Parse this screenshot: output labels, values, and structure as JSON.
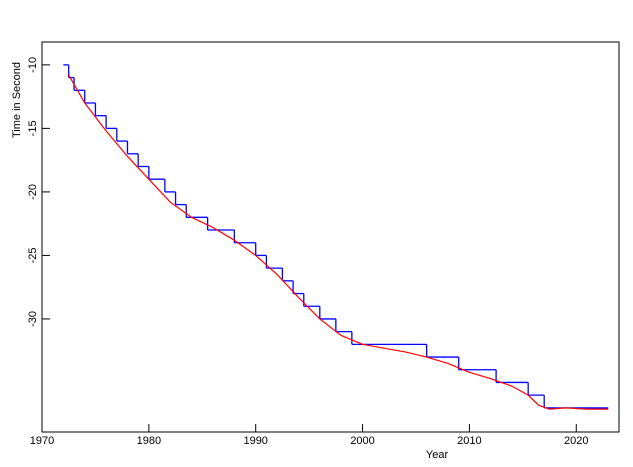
{
  "chart_data": {
    "type": "line",
    "xlabel": "Year",
    "ylabel": "Time in Second",
    "xlim": [
      1970,
      2024
    ],
    "ylim": [
      -38.9,
      -8.2
    ],
    "xticks": [
      1970,
      1980,
      1990,
      2000,
      2010,
      2020
    ],
    "yticks": [
      -10,
      -15,
      -20,
      -25,
      -30
    ],
    "series": [
      {
        "color": "#0000ff",
        "step": true,
        "x": [
          1972,
          1972.5,
          1973,
          1974,
          1975,
          1976,
          1977,
          1978,
          1979,
          1980,
          1981.5,
          1982.5,
          1983.5,
          1985.5,
          1988,
          1990,
          1991,
          1992.5,
          1993.5,
          1994.5,
          1996,
          1997.5,
          1999,
          2006,
          2009,
          2012.5,
          2015.5,
          2017,
          2023
        ],
        "values": [
          -10,
          -11,
          -12,
          -13,
          -14,
          -15,
          -16,
          -17,
          -18,
          -19,
          -20,
          -21,
          -22,
          -23,
          -24,
          -25,
          -26,
          -27,
          -28,
          -29,
          -30,
          -31,
          -32,
          -33,
          -34,
          -35,
          -36,
          -37,
          -37
        ]
      },
      {
        "color": "#ff0000",
        "step": false,
        "x": [
          1972.5,
          1974,
          1976,
          1978,
          1980,
          1982,
          1984,
          1986,
          1988,
          1990,
          1992,
          1994,
          1996,
          1998,
          2000,
          2002,
          2004,
          2006,
          2008,
          2010,
          2012,
          2014,
          2015.5,
          2016.5,
          2017.5,
          2019,
          2021,
          2023
        ],
        "values": [
          -10.8,
          -13,
          -15.2,
          -17.2,
          -19,
          -20.8,
          -22,
          -22.8,
          -23.8,
          -25,
          -26.5,
          -28.3,
          -30,
          -31.3,
          -32,
          -32.3,
          -32.6,
          -33,
          -33.5,
          -34.2,
          -34.7,
          -35.3,
          -36,
          -36.8,
          -37.1,
          -37,
          -37.1,
          -37.1
        ]
      }
    ]
  }
}
